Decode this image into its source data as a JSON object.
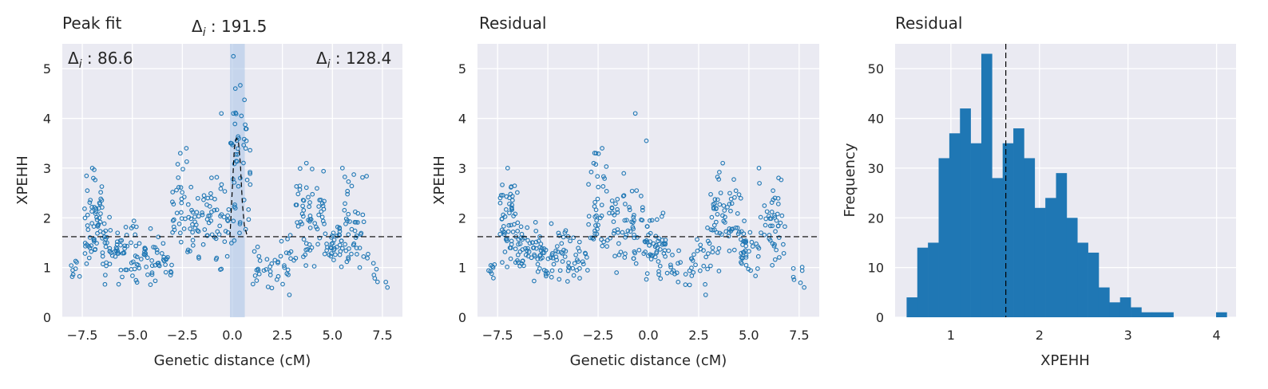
{
  "colors": {
    "background": "#eaeaf2",
    "grid": "#ffffff",
    "series": "#1f77b4",
    "highlight": "#aec7e8",
    "reference": "#000000"
  },
  "chart_data": [
    {
      "type": "scatter",
      "title": "Peak fit",
      "xlabel": "Genetic distance (cM)",
      "ylabel": "XPEHH",
      "xlim": [
        -8.5,
        8.5
      ],
      "ylim": [
        0,
        5.5
      ],
      "xticks": [
        -7.5,
        -5.0,
        -2.5,
        0.0,
        2.5,
        5.0,
        7.5
      ],
      "xtick_labels": [
        "−7.5",
        "−5.0",
        "−2.5",
        "0.0",
        "2.5",
        "5.0",
        "7.5"
      ],
      "yticks": [
        0,
        1,
        2,
        3,
        4,
        5
      ],
      "grid": true,
      "marker": "hollow circle",
      "baseline_y": 1.62,
      "shaded_region_x": [
        -0.12,
        0.62
      ],
      "annotations": {
        "top": {
          "label": "Δ",
          "sub": "i",
          "value": " : 191.5"
        },
        "left": {
          "label": "Δ",
          "sub": "i",
          "value": " : 86.6"
        },
        "right": {
          "label": "Δ",
          "sub": "i",
          "value": " : 128.4"
        }
      },
      "peak_fit_curve": [
        [
          -0.12,
          1.62
        ],
        [
          0.0,
          2.6
        ],
        [
          0.1,
          3.4
        ],
        [
          0.2,
          3.6
        ],
        [
          0.3,
          3.55
        ],
        [
          0.4,
          3.1
        ],
        [
          0.5,
          2.3
        ],
        [
          0.6,
          1.85
        ],
        [
          0.75,
          1.62
        ]
      ],
      "point_clusters": [
        {
          "x": [
            -8.1,
            -7.6
          ],
          "y": [
            0.6,
            1.3
          ],
          "n": 8
        },
        {
          "x": [
            -7.4,
            -6.5
          ],
          "y": [
            0.8,
            3.0
          ],
          "n": 55
        },
        {
          "x": [
            -6.5,
            -5.4
          ],
          "y": [
            0.6,
            2.1
          ],
          "n": 45
        },
        {
          "x": [
            -5.4,
            -4.0
          ],
          "y": [
            0.55,
            2.0
          ],
          "n": 45
        },
        {
          "x": [
            -4.0,
            -3.0
          ],
          "y": [
            0.6,
            1.7
          ],
          "n": 25
        },
        {
          "x": [
            -3.0,
            -1.8
          ],
          "y": [
            0.9,
            3.4
          ],
          "n": 45
        },
        {
          "x": [
            -1.8,
            -0.2
          ],
          "y": [
            0.7,
            3.0
          ],
          "n": 55
        },
        {
          "x": [
            -0.2,
            0.9
          ],
          "y": [
            1.0,
            5.2
          ],
          "n": 50
        },
        {
          "x": [
            0.9,
            2.4
          ],
          "y": [
            0.5,
            1.5
          ],
          "n": 25
        },
        {
          "x": [
            2.4,
            3.1
          ],
          "y": [
            0.4,
            1.9
          ],
          "n": 15
        },
        {
          "x": [
            3.1,
            4.6
          ],
          "y": [
            0.8,
            3.1
          ],
          "n": 60
        },
        {
          "x": [
            4.6,
            5.5
          ],
          "y": [
            0.8,
            2.0
          ],
          "n": 35
        },
        {
          "x": [
            5.5,
            6.8
          ],
          "y": [
            0.9,
            3.0
          ],
          "n": 45
        },
        {
          "x": [
            6.8,
            7.8
          ],
          "y": [
            0.6,
            1.2
          ],
          "n": 6
        }
      ],
      "notable_points": [
        [
          0.05,
          5.25
        ],
        [
          0.15,
          4.6
        ],
        [
          0.05,
          4.1
        ],
        [
          -0.55,
          4.1
        ],
        [
          -2.3,
          3.4
        ],
        [
          -2.6,
          3.3
        ],
        [
          5.5,
          3.0
        ],
        [
          3.7,
          3.1
        ],
        [
          -7.0,
          3.0
        ],
        [
          2.85,
          0.45
        ],
        [
          7.75,
          0.6
        ]
      ]
    },
    {
      "type": "scatter",
      "title": "Residual",
      "xlabel": "Genetic distance (cM)",
      "ylabel": "XPEHH",
      "xlim": [
        -8.5,
        8.5
      ],
      "ylim": [
        0,
        5.5
      ],
      "xticks": [
        -7.5,
        -5.0,
        -2.5,
        0.0,
        2.5,
        5.0,
        7.5
      ],
      "xtick_labels": [
        "−7.5",
        "−5.0",
        "−2.5",
        "0.0",
        "2.5",
        "5.0",
        "7.5"
      ],
      "yticks": [
        0,
        1,
        2,
        3,
        4,
        5
      ],
      "grid": true,
      "marker": "hollow circle",
      "baseline_y": 1.62,
      "point_clusters": [
        {
          "x": [
            -8.1,
            -7.6
          ],
          "y": [
            0.6,
            1.3
          ],
          "n": 8
        },
        {
          "x": [
            -7.4,
            -6.5
          ],
          "y": [
            0.8,
            3.0
          ],
          "n": 55
        },
        {
          "x": [
            -6.5,
            -5.4
          ],
          "y": [
            0.6,
            2.1
          ],
          "n": 45
        },
        {
          "x": [
            -5.4,
            -4.0
          ],
          "y": [
            0.55,
            2.0
          ],
          "n": 45
        },
        {
          "x": [
            -4.0,
            -3.0
          ],
          "y": [
            0.6,
            1.7
          ],
          "n": 25
        },
        {
          "x": [
            -3.0,
            -1.8
          ],
          "y": [
            0.9,
            3.4
          ],
          "n": 45
        },
        {
          "x": [
            -1.8,
            -0.2
          ],
          "y": [
            0.7,
            3.0
          ],
          "n": 55
        },
        {
          "x": [
            -0.2,
            0.9
          ],
          "y": [
            0.6,
            2.4
          ],
          "n": 50
        },
        {
          "x": [
            0.9,
            2.4
          ],
          "y": [
            0.5,
            1.5
          ],
          "n": 25
        },
        {
          "x": [
            2.4,
            3.1
          ],
          "y": [
            0.4,
            1.9
          ],
          "n": 15
        },
        {
          "x": [
            3.1,
            4.6
          ],
          "y": [
            0.8,
            3.1
          ],
          "n": 60
        },
        {
          "x": [
            4.6,
            5.5
          ],
          "y": [
            0.8,
            2.0
          ],
          "n": 35
        },
        {
          "x": [
            5.5,
            6.8
          ],
          "y": [
            0.9,
            3.0
          ],
          "n": 45
        },
        {
          "x": [
            6.8,
            7.8
          ],
          "y": [
            0.6,
            1.2
          ],
          "n": 6
        }
      ],
      "notable_points": [
        [
          -0.65,
          4.1
        ],
        [
          -0.1,
          3.55
        ],
        [
          -2.3,
          3.4
        ],
        [
          -2.6,
          3.3
        ],
        [
          5.5,
          3.0
        ],
        [
          3.7,
          3.1
        ],
        [
          -7.0,
          3.0
        ],
        [
          2.85,
          0.45
        ],
        [
          7.75,
          0.6
        ]
      ]
    },
    {
      "type": "bar",
      "subtype": "histogram",
      "title": "Residual",
      "xlabel": "XPEHH",
      "ylabel": "Frequency",
      "xlim": [
        0.37,
        4.22
      ],
      "ylim": [
        0,
        55
      ],
      "xticks": [
        1,
        2,
        3,
        4
      ],
      "yticks": [
        0,
        10,
        20,
        30,
        40,
        50
      ],
      "grid": true,
      "bin_start": 0.5,
      "bin_width": 0.1205,
      "counts": [
        4,
        14,
        15,
        32,
        37,
        42,
        35,
        53,
        28,
        35,
        38,
        32,
        22,
        24,
        29,
        20,
        15,
        13,
        6,
        3,
        4,
        2,
        1,
        1,
        1,
        0,
        0,
        0,
        0,
        1
      ],
      "vline_x": 1.62
    }
  ]
}
